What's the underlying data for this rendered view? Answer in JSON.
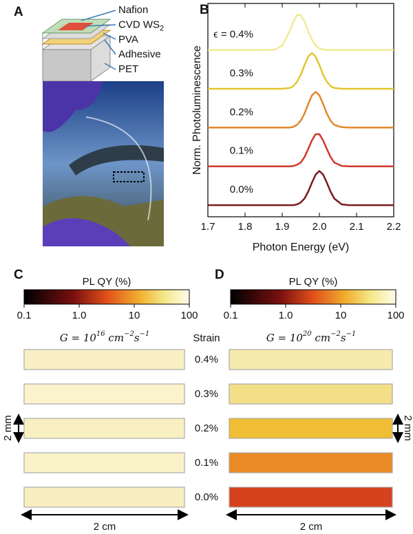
{
  "chart_data": {
    "type": "line",
    "panel_letter": "B",
    "x_label": "Photon Energy (eV)",
    "y_label": "Norm. Photoluminescence",
    "xlim": [
      1.7,
      2.2
    ],
    "xticks": [
      1.7,
      1.8,
      1.9,
      {
        "value": 2.0,
        "label": "2.0"
      },
      2.1,
      2.2
    ],
    "ylim": [
      -0.3,
      5.2
    ],
    "x": [
      1.7,
      1.8,
      1.85,
      1.88,
      1.9,
      1.92,
      1.93,
      1.94,
      1.95,
      1.96,
      1.97,
      1.98,
      1.99,
      2.0,
      2.01,
      2.02,
      2.03,
      2.04,
      2.06,
      2.08,
      2.1,
      2.15,
      2.2
    ],
    "series": [
      {
        "name": "ϵ = 0.4%",
        "color": "#f2ea92",
        "values": [
          4,
          4,
          4,
          4.01,
          4.11,
          4.48,
          4.73,
          4.9,
          4.9,
          4.73,
          4.48,
          4.26,
          4.11,
          4.04,
          4.01,
          4,
          4,
          4,
          4,
          4,
          4,
          4,
          4
        ]
      },
      {
        "name": "0.3%",
        "color": "#e2c62c",
        "values": [
          3,
          3,
          3,
          3,
          3,
          3.02,
          3.07,
          3.18,
          3.36,
          3.61,
          3.83,
          3.92,
          3.83,
          3.61,
          3.36,
          3.18,
          3.07,
          3.02,
          3,
          3,
          3,
          3,
          3
        ]
      },
      {
        "name": "0.2%",
        "color": "#e2862c",
        "values": [
          2,
          2,
          2,
          2,
          2,
          2,
          2.02,
          2.07,
          2.18,
          2.36,
          2.61,
          2.83,
          2.92,
          2.83,
          2.61,
          2.36,
          2.18,
          2.07,
          2.01,
          2,
          2,
          2,
          2
        ]
      },
      {
        "name": "0.1%",
        "color": "#d1382b",
        "values": [
          1,
          1,
          1,
          1,
          1,
          1,
          1.01,
          1.04,
          1.1,
          1.24,
          1.45,
          1.67,
          1.83,
          1.83,
          1.67,
          1.45,
          1.24,
          1.1,
          1.01,
          1,
          1,
          1,
          1
        ]
      },
      {
        "name": "0.0%",
        "color": "#7a1a1c",
        "values": [
          0,
          0,
          0,
          0,
          0,
          0,
          0,
          0.02,
          0.07,
          0.17,
          0.35,
          0.58,
          0.79,
          0.88,
          0.79,
          0.58,
          0.35,
          0.17,
          0.02,
          0,
          0,
          0,
          0
        ]
      }
    ]
  },
  "panels": {
    "A": {
      "letter": "A",
      "layers": [
        {
          "text": "Nafion"
        },
        {
          "text": "CVD WS",
          "sub": "2"
        },
        {
          "text": "PVA"
        },
        {
          "text": "Adhesive"
        },
        {
          "text": "PET"
        }
      ]
    },
    "C": {
      "letter": "C",
      "colorbar": {
        "title": "PL QY (%)",
        "lim": [
          0.1,
          100
        ],
        "ticks": [
          0.1,
          {
            "value": 1,
            "label": "1.0"
          },
          10,
          100
        ]
      },
      "heading": [
        "G = 10",
        "16",
        " cm",
        "−2",
        "s",
        "−1"
      ],
      "strip_colors": [
        "#f8f0c4",
        "#faf3cc",
        "#f9f0c2",
        "#faf3ca",
        "#f8efc0"
      ],
      "scale_vertical": "2 mm",
      "scale_horizontal": "2 cm"
    },
    "D": {
      "letter": "D",
      "colorbar": {
        "title": "PL QY (%)",
        "lim": [
          0.1,
          100
        ],
        "ticks": [
          0.1,
          {
            "value": 1,
            "label": "1.0"
          },
          10,
          100
        ]
      },
      "heading": [
        "G = 10",
        "20",
        " cm",
        "−2",
        "s",
        "−1"
      ],
      "strip_colors": [
        "#f6ebac",
        "#f3df88",
        "#efbe34",
        "#ea8a24",
        "#d6421e"
      ],
      "scale_vertical": "2 mm",
      "scale_horizontal": "2 cm"
    },
    "strain": {
      "title": "Strain",
      "labels": [
        "0.4%",
        "0.3%",
        "0.2%",
        "0.1%",
        "0.0%"
      ]
    }
  }
}
